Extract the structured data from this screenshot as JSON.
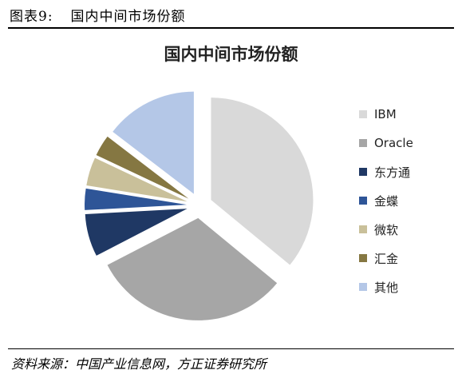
{
  "caption": {
    "number": "图表9:",
    "title": "国内中间市场份额"
  },
  "source": "资料来源：中国产业信息网，方正证券研究所",
  "chart_data": {
    "type": "pie",
    "title": "国内中间市场份额",
    "legend_position": "right",
    "exploded": true,
    "slices": [
      {
        "label": "IBM",
        "value": 32,
        "color": "#d9d9d9"
      },
      {
        "label": "Oracle",
        "value": 28,
        "color": "#a6a6a6"
      },
      {
        "label": "东方通",
        "value": 6,
        "color": "#1f3864"
      },
      {
        "label": "金蝶",
        "value": 3,
        "color": "#2e5597"
      },
      {
        "label": "微软",
        "value": 4,
        "color": "#c9c09a"
      },
      {
        "label": "汇金",
        "value": 3,
        "color": "#857742"
      },
      {
        "label": "其他",
        "value": 13,
        "color": "#b4c7e7"
      }
    ]
  }
}
